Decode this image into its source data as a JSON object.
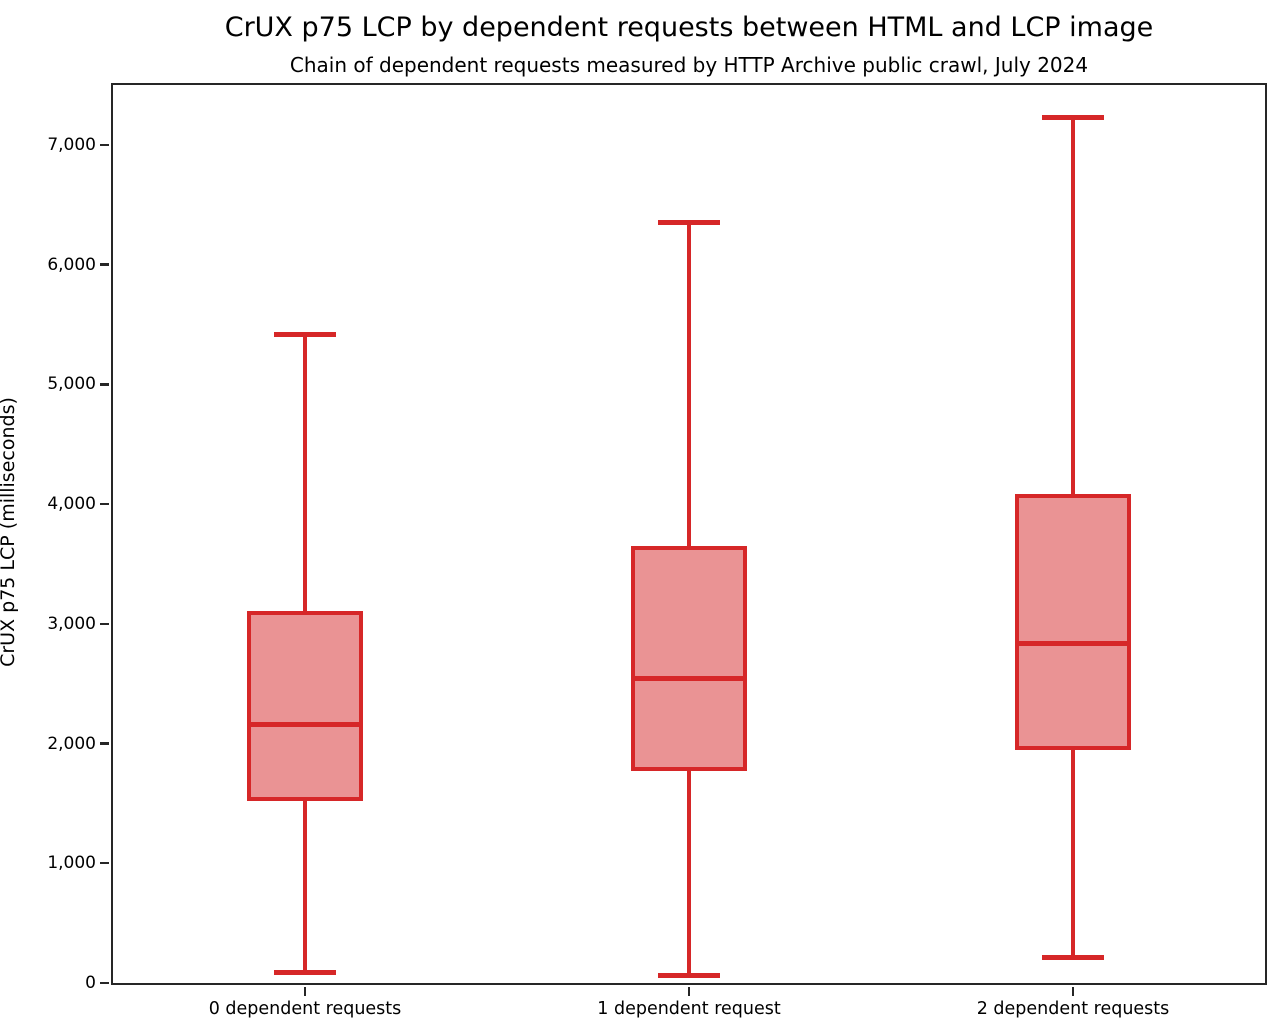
{
  "chart_data": {
    "type": "boxplot",
    "title": "CrUX p75 LCP by dependent requests between HTML and LCP image",
    "subtitle": "Chain of dependent requests measured by HTTP Archive public crawl, July 2024",
    "ylabel": "CrUX p75 LCP (milliseconds)",
    "xlabel": "",
    "categories": [
      "0 dependent requests",
      "1 dependent request",
      "2 dependent requests"
    ],
    "series": [
      {
        "category": "0 dependent requests",
        "whisker_low": 85,
        "q1": 1540,
        "median": 2160,
        "q3": 3090,
        "whisker_high": 5420
      },
      {
        "category": "1 dependent request",
        "whisker_low": 60,
        "q1": 1790,
        "median": 2545,
        "q3": 3630,
        "whisker_high": 6355
      },
      {
        "category": "2 dependent requests",
        "whisker_low": 215,
        "q1": 1965,
        "median": 2835,
        "q3": 4065,
        "whisker_high": 7230
      }
    ],
    "ylim": [
      0,
      7500
    ],
    "yticks": [
      0,
      1000,
      2000,
      3000,
      4000,
      5000,
      6000,
      7000
    ],
    "ytick_labels": [
      "0",
      "1,000",
      "2,000",
      "3,000",
      "4,000",
      "5,000",
      "6,000",
      "7,000"
    ],
    "legend": "none",
    "grid": false,
    "colors": {
      "box_edge": "#d62728",
      "box_fill": "#ea9394",
      "axis": "#262626",
      "text": "#000000",
      "background": "#ffffff"
    }
  }
}
